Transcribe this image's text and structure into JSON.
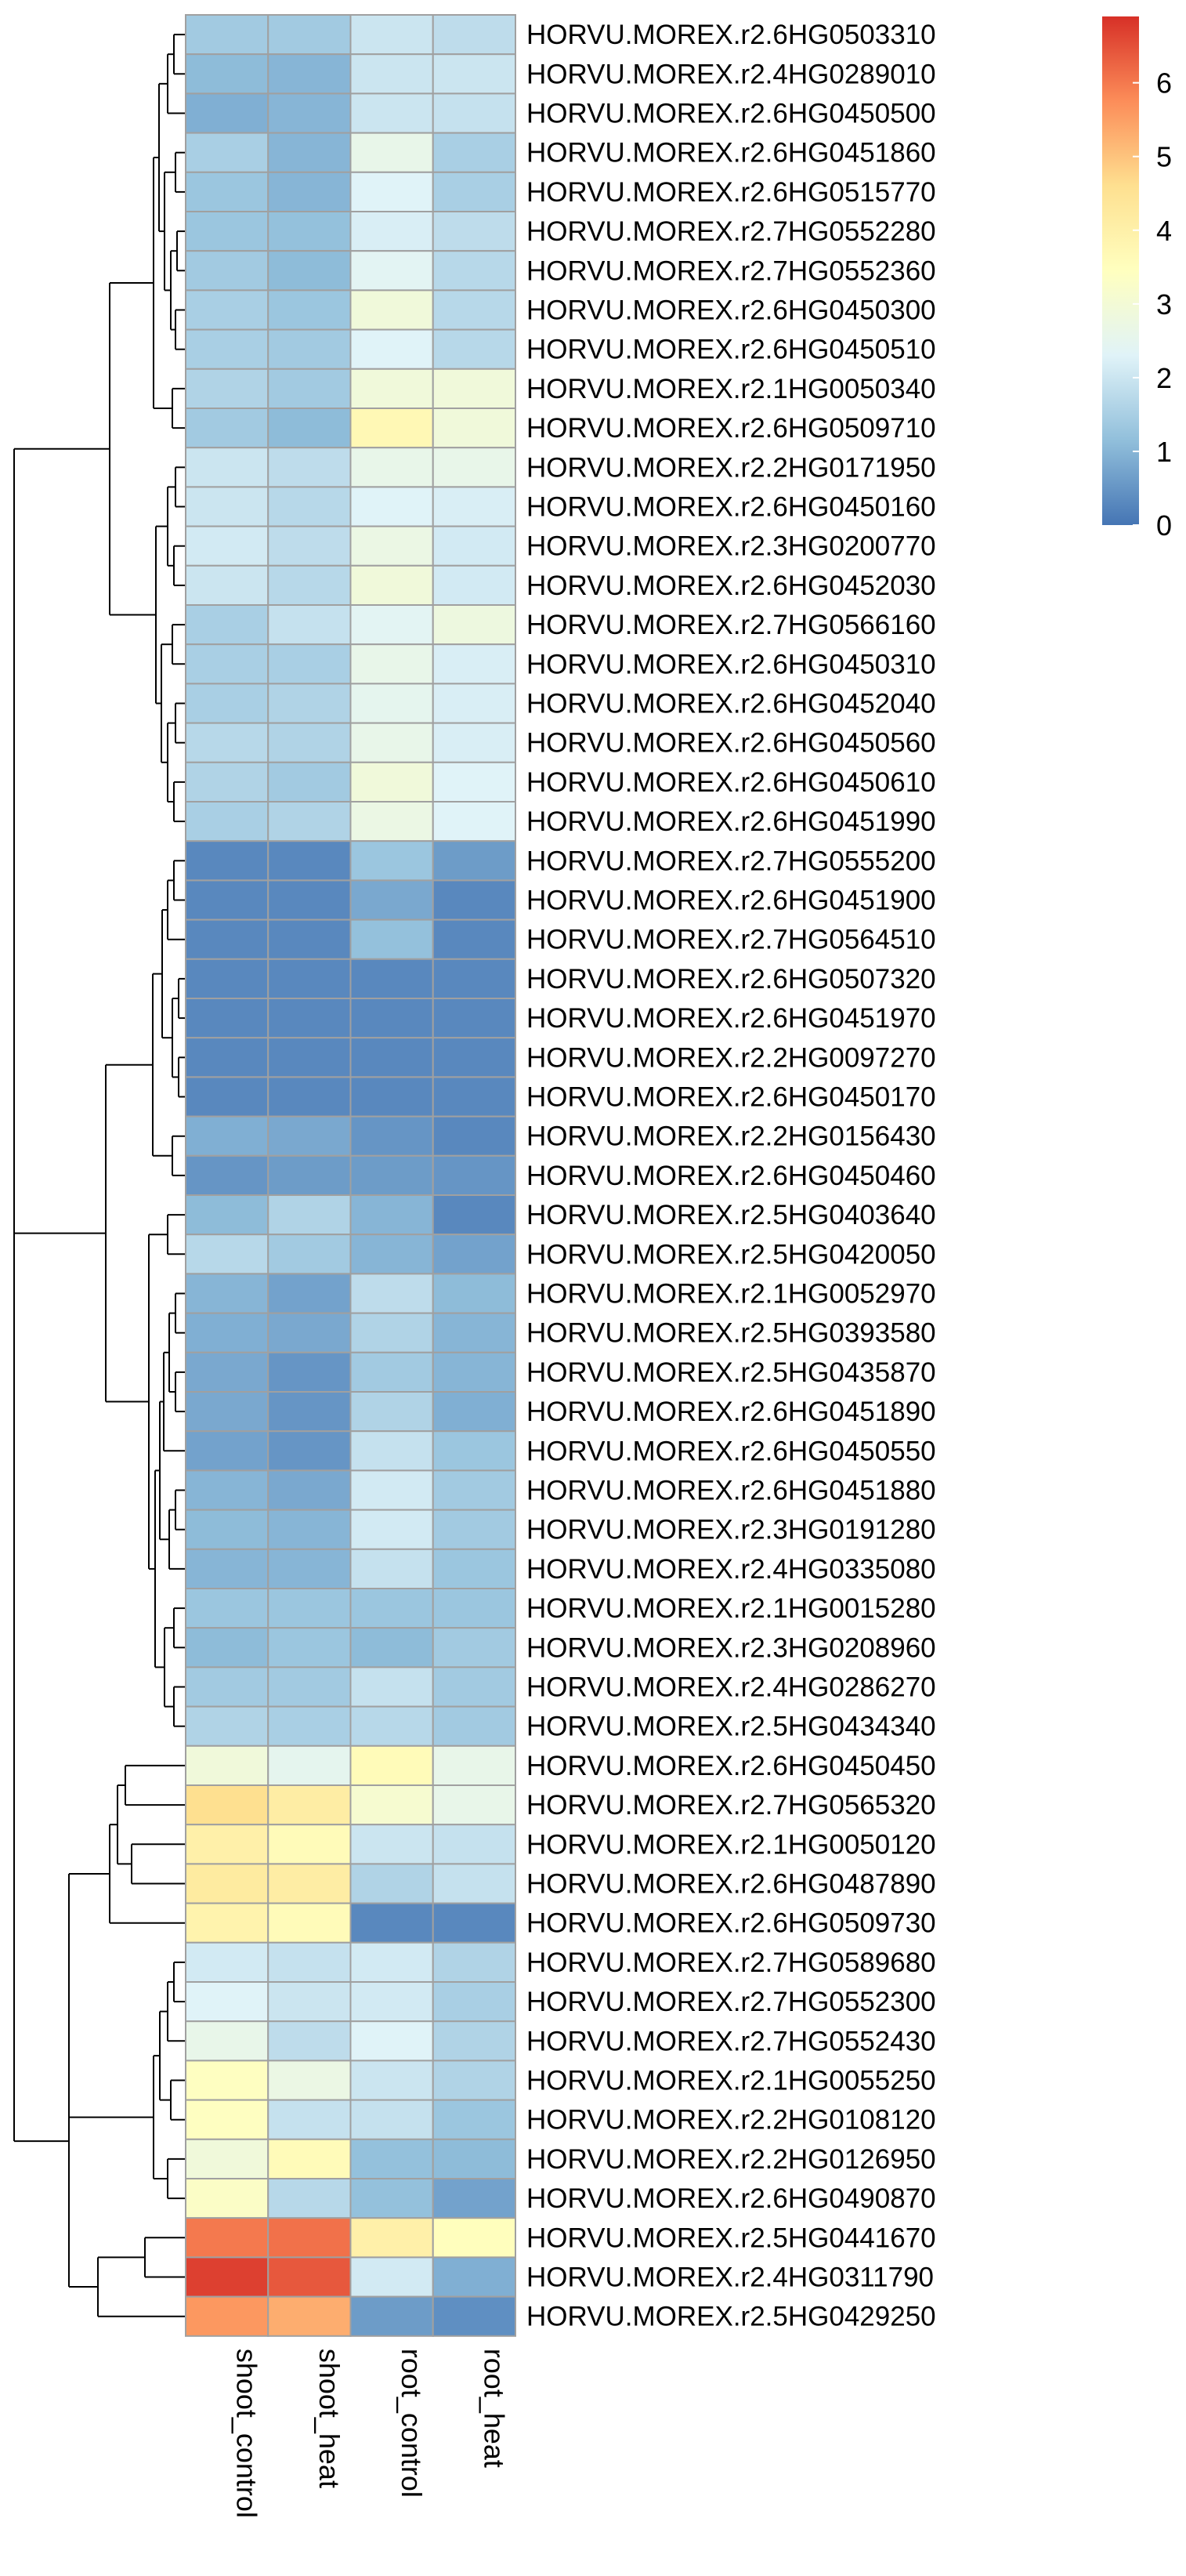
{
  "chart_data": {
    "type": "heatmap",
    "title": "",
    "columns": [
      "shoot_control",
      "shoot_heat",
      "root_control",
      "root_heat"
    ],
    "rows": [
      "HORVU.MOREX.r2.6HG0503310",
      "HORVU.MOREX.r2.4HG0289010",
      "HORVU.MOREX.r2.6HG0450500",
      "HORVU.MOREX.r2.6HG0451860",
      "HORVU.MOREX.r2.6HG0515770",
      "HORVU.MOREX.r2.7HG0552280",
      "HORVU.MOREX.r2.7HG0552360",
      "HORVU.MOREX.r2.6HG0450300",
      "HORVU.MOREX.r2.6HG0450510",
      "HORVU.MOREX.r2.1HG0050340",
      "HORVU.MOREX.r2.6HG0509710",
      "HORVU.MOREX.r2.2HG0171950",
      "HORVU.MOREX.r2.6HG0450160",
      "HORVU.MOREX.r2.3HG0200770",
      "HORVU.MOREX.r2.6HG0452030",
      "HORVU.MOREX.r2.7HG0566160",
      "HORVU.MOREX.r2.6HG0450310",
      "HORVU.MOREX.r2.6HG0452040",
      "HORVU.MOREX.r2.6HG0450560",
      "HORVU.MOREX.r2.6HG0450610",
      "HORVU.MOREX.r2.6HG0451990",
      "HORVU.MOREX.r2.7HG0555200",
      "HORVU.MOREX.r2.6HG0451900",
      "HORVU.MOREX.r2.7HG0564510",
      "HORVU.MOREX.r2.6HG0507320",
      "HORVU.MOREX.r2.6HG0451970",
      "HORVU.MOREX.r2.2HG0097270",
      "HORVU.MOREX.r2.6HG0450170",
      "HORVU.MOREX.r2.2HG0156430",
      "HORVU.MOREX.r2.6HG0450460",
      "HORVU.MOREX.r2.5HG0403640",
      "HORVU.MOREX.r2.5HG0420050",
      "HORVU.MOREX.r2.1HG0052970",
      "HORVU.MOREX.r2.5HG0393580",
      "HORVU.MOREX.r2.5HG0435870",
      "HORVU.MOREX.r2.6HG0451890",
      "HORVU.MOREX.r2.6HG0450550",
      "HORVU.MOREX.r2.6HG0451880",
      "HORVU.MOREX.r2.3HG0191280",
      "HORVU.MOREX.r2.4HG0335080",
      "HORVU.MOREX.r2.1HG0015280",
      "HORVU.MOREX.r2.3HG0208960",
      "HORVU.MOREX.r2.4HG0286270",
      "HORVU.MOREX.r2.5HG0434340",
      "HORVU.MOREX.r2.6HG0450450",
      "HORVU.MOREX.r2.7HG0565320",
      "HORVU.MOREX.r2.1HG0050120",
      "HORVU.MOREX.r2.6HG0487890",
      "HORVU.MOREX.r2.6HG0509730",
      "HORVU.MOREX.r2.7HG0589680",
      "HORVU.MOREX.r2.7HG0552300",
      "HORVU.MOREX.r2.7HG0552430",
      "HORVU.MOREX.r2.1HG0055250",
      "HORVU.MOREX.r2.2HG0108120",
      "HORVU.MOREX.r2.2HG0126950",
      "HORVU.MOREX.r2.6HG0490870",
      "HORVU.MOREX.r2.5HG0441670",
      "HORVU.MOREX.r2.4HG0311790",
      "HORVU.MOREX.r2.5HG0429250"
    ],
    "values": [
      [
        1.4,
        1.4,
        2.0,
        1.8
      ],
      [
        1.1,
        1.0,
        2.0,
        2.0
      ],
      [
        0.9,
        1.0,
        2.0,
        1.9
      ],
      [
        1.5,
        1.0,
        2.6,
        1.5
      ],
      [
        1.3,
        1.0,
        2.3,
        1.5
      ],
      [
        1.3,
        1.2,
        2.2,
        1.8
      ],
      [
        1.4,
        1.1,
        2.4,
        1.7
      ],
      [
        1.5,
        1.3,
        2.9,
        1.7
      ],
      [
        1.5,
        1.4,
        2.3,
        1.7
      ],
      [
        1.6,
        1.4,
        2.9,
        2.9
      ],
      [
        1.4,
        1.1,
        3.7,
        2.9
      ],
      [
        2.0,
        1.8,
        2.6,
        2.6
      ],
      [
        2.0,
        1.7,
        2.3,
        2.2
      ],
      [
        2.1,
        1.8,
        2.7,
        2.1
      ],
      [
        2.0,
        1.7,
        2.9,
        2.1
      ],
      [
        1.5,
        1.9,
        2.4,
        2.8
      ],
      [
        1.5,
        1.5,
        2.6,
        2.2
      ],
      [
        1.5,
        1.6,
        2.5,
        2.2
      ],
      [
        1.7,
        1.6,
        2.6,
        2.2
      ],
      [
        1.6,
        1.4,
        2.9,
        2.3
      ],
      [
        1.5,
        1.6,
        2.7,
        2.3
      ],
      [
        0.3,
        0.3,
        1.3,
        0.6
      ],
      [
        0.3,
        0.3,
        0.8,
        0.3
      ],
      [
        0.3,
        0.3,
        1.2,
        0.3
      ],
      [
        0.3,
        0.3,
        0.3,
        0.3
      ],
      [
        0.3,
        0.3,
        0.3,
        0.3
      ],
      [
        0.3,
        0.3,
        0.3,
        0.3
      ],
      [
        0.3,
        0.3,
        0.3,
        0.3
      ],
      [
        0.9,
        0.8,
        0.5,
        0.3
      ],
      [
        0.5,
        0.6,
        0.6,
        0.5
      ],
      [
        1.1,
        1.6,
        1.0,
        0.3
      ],
      [
        1.7,
        1.4,
        1.0,
        0.7
      ],
      [
        1.0,
        0.7,
        1.8,
        1.1
      ],
      [
        0.9,
        0.8,
        1.6,
        1.0
      ],
      [
        0.8,
        0.5,
        1.4,
        1.0
      ],
      [
        0.8,
        0.5,
        1.6,
        0.9
      ],
      [
        0.7,
        0.5,
        1.9,
        1.3
      ],
      [
        1.0,
        0.8,
        2.1,
        1.4
      ],
      [
        1.1,
        1.0,
        2.1,
        1.4
      ],
      [
        1.0,
        1.0,
        1.9,
        1.3
      ],
      [
        1.3,
        1.3,
        1.3,
        1.3
      ],
      [
        1.1,
        1.3,
        1.1,
        1.4
      ],
      [
        1.4,
        1.4,
        1.9,
        1.4
      ],
      [
        1.6,
        1.5,
        1.7,
        1.4
      ],
      [
        2.9,
        2.5,
        3.6,
        2.6
      ],
      [
        4.6,
        4.1,
        3.1,
        2.6
      ],
      [
        4.0,
        3.6,
        2.0,
        1.9
      ],
      [
        4.2,
        4.1,
        1.6,
        1.9
      ],
      [
        3.9,
        3.6,
        0.3,
        0.3
      ],
      [
        2.1,
        1.9,
        2.1,
        1.6
      ],
      [
        2.3,
        2.0,
        2.1,
        1.5
      ],
      [
        2.6,
        1.8,
        2.3,
        1.6
      ],
      [
        3.4,
        2.7,
        2.0,
        1.6
      ],
      [
        3.4,
        1.9,
        1.9,
        1.3
      ],
      [
        2.9,
        3.6,
        1.2,
        1.1
      ],
      [
        3.3,
        1.7,
        1.2,
        0.7
      ],
      [
        6.0,
        6.1,
        4.0,
        3.5
      ],
      [
        6.7,
        6.4,
        2.1,
        0.9
      ],
      [
        5.6,
        5.3,
        0.6,
        0.4
      ]
    ],
    "vmin": 0,
    "vmax": 6.9,
    "colorscale": [
      "#4575b4",
      "#91bfdb",
      "#e0f3f8",
      "#ffffbf",
      "#fee090",
      "#fc8d59",
      "#d73027"
    ],
    "legend_ticks": [
      "0",
      "1",
      "2",
      "3",
      "4",
      "5",
      "6"
    ],
    "legend_placement": "top-right",
    "cell_border_color": "#a0a0a0",
    "row_dendrogram": true
  }
}
